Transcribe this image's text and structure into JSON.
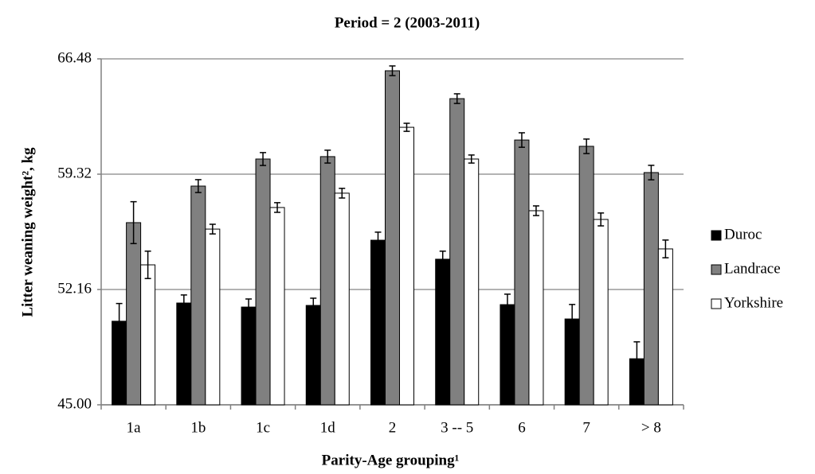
{
  "chart_data": {
    "type": "bar",
    "title": "Period = 2 (2003-2011)",
    "x_label": "Parity-Age grouping¹",
    "y_label": "Litter weaning weight², kg",
    "categories": [
      "1a",
      "1b",
      "1c",
      "1d",
      "2",
      "3 -- 5",
      "6",
      "7",
      "> 8"
    ],
    "series": [
      {
        "name": "Duroc",
        "color": "#000000",
        "values": [
          50.19,
          51.32,
          51.07,
          51.17,
          55.22,
          54.04,
          51.22,
          50.33,
          47.86
        ],
        "errors": [
          1.1,
          0.5,
          0.5,
          0.45,
          0.5,
          0.5,
          0.65,
          0.9,
          1.05
        ]
      },
      {
        "name": "Landrace",
        "color": "#808080",
        "values": [
          56.31,
          58.58,
          60.26,
          60.41,
          65.74,
          64.01,
          61.44,
          61.05,
          59.42
        ],
        "errors": [
          1.3,
          0.4,
          0.4,
          0.4,
          0.3,
          0.3,
          0.45,
          0.45,
          0.45
        ]
      },
      {
        "name": "Yorkshire",
        "color": "#ffffff",
        "values": [
          53.69,
          55.91,
          57.25,
          58.14,
          62.23,
          60.26,
          57.05,
          56.51,
          54.68
        ],
        "errors": [
          0.85,
          0.3,
          0.3,
          0.3,
          0.25,
          0.25,
          0.3,
          0.4,
          0.55
        ]
      }
    ],
    "ylim": [
      45,
      66.48
    ],
    "yticks": [
      {
        "value": 45,
        "label": "45.00"
      },
      52.16,
      59.32,
      66.48
    ],
    "grid": true,
    "legend": "right"
  }
}
